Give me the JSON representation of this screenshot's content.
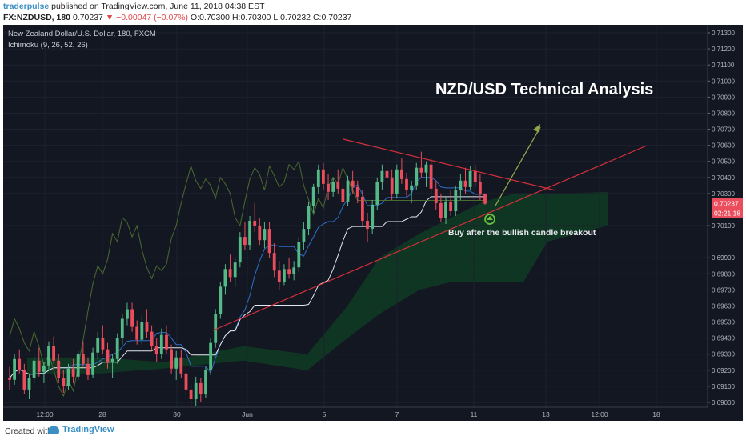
{
  "header": {
    "username": "traderpulse",
    "published_text": " published on TradingView.com, June 11, 2018 04:38 EST",
    "symbol": "FX:NZDUSD, 180",
    "last": "0.70237",
    "change": "−0.00047 (−0.07%)",
    "ohlc": "O:0.70300 H:0.70300 L:0.70232 C:0.70237"
  },
  "chart_info": {
    "instrument": "New Zealand Dollar/U.S. Dollar, 180, FXCM",
    "indicator": "Ichimoku (9, 26, 52, 26)"
  },
  "annotations": {
    "title": "NZD/USD Technical Analysis",
    "note": "Buy after the bullish candle breakout"
  },
  "footer": {
    "created_with": "Created with",
    "brand": "TradingView"
  },
  "colors": {
    "background": "#131722",
    "up": "#53b987",
    "down": "#eb4d5c",
    "price_label": "#eb4d5c",
    "trendline": "#d42f3a",
    "kijun": "#e3e7ee",
    "tenkan": "#2e6fc9",
    "cloud": "#0f3a22"
  },
  "chart_data": {
    "type": "candlestick",
    "y_ticks": [
      "0.71300",
      "0.71200",
      "0.71100",
      "0.71000",
      "0.70900",
      "0.70800",
      "0.70700",
      "0.70600",
      "0.70500",
      "0.70400",
      "0.70300",
      "0.70100",
      "0.69900",
      "0.69800",
      "0.69700",
      "0.69600",
      "0.69500",
      "0.69400",
      "0.69300",
      "0.69200",
      "0.69100",
      "0.69000"
    ],
    "x_ticks": [
      "12:00",
      "28",
      "30",
      "Jun",
      "5",
      "7",
      "11",
      "13",
      "12:00",
      "18"
    ],
    "ylim": [
      0.6897,
      0.7135
    ],
    "last_price": "0.70237",
    "countdown": "02:21:18",
    "ohlc_sample_start": "early 28 May",
    "ohlc_sample_end": "11 Jun",
    "candles": [
      [
        0.6915,
        0.6922,
        0.6908,
        0.6914
      ],
      [
        0.6914,
        0.693,
        0.6911,
        0.6927
      ],
      [
        0.6927,
        0.6933,
        0.6918,
        0.692
      ],
      [
        0.692,
        0.6924,
        0.6905,
        0.6908
      ],
      [
        0.6908,
        0.6918,
        0.6902,
        0.6915
      ],
      [
        0.6915,
        0.6929,
        0.6912,
        0.6926
      ],
      [
        0.6926,
        0.6934,
        0.6916,
        0.6919
      ],
      [
        0.6919,
        0.6925,
        0.6912,
        0.6923
      ],
      [
        0.6923,
        0.6938,
        0.692,
        0.6935
      ],
      [
        0.6935,
        0.6941,
        0.6924,
        0.6926
      ],
      [
        0.6926,
        0.693,
        0.6912,
        0.6915
      ],
      [
        0.6915,
        0.692,
        0.6906,
        0.691
      ],
      [
        0.691,
        0.6924,
        0.6908,
        0.6921
      ],
      [
        0.6921,
        0.6927,
        0.6912,
        0.6916
      ],
      [
        0.6916,
        0.6932,
        0.6914,
        0.693
      ],
      [
        0.693,
        0.6938,
        0.6922,
        0.6924
      ],
      [
        0.6924,
        0.6928,
        0.6914,
        0.6917
      ],
      [
        0.6917,
        0.6934,
        0.6915,
        0.6931
      ],
      [
        0.6931,
        0.6944,
        0.6927,
        0.694
      ],
      [
        0.694,
        0.6948,
        0.693,
        0.6933
      ],
      [
        0.6933,
        0.6937,
        0.6921,
        0.6925
      ],
      [
        0.6925,
        0.693,
        0.6915,
        0.6927
      ],
      [
        0.6927,
        0.6943,
        0.6924,
        0.694
      ],
      [
        0.694,
        0.6955,
        0.6936,
        0.6952
      ],
      [
        0.6952,
        0.6962,
        0.6948,
        0.6958
      ],
      [
        0.6958,
        0.6962,
        0.6944,
        0.6947
      ],
      [
        0.6947,
        0.6951,
        0.6936,
        0.6939
      ],
      [
        0.6939,
        0.6954,
        0.6936,
        0.695
      ],
      [
        0.695,
        0.6958,
        0.694,
        0.6944
      ],
      [
        0.6944,
        0.6948,
        0.6932,
        0.6935
      ],
      [
        0.6935,
        0.694,
        0.6925,
        0.693
      ],
      [
        0.693,
        0.6946,
        0.6927,
        0.6942
      ],
      [
        0.6942,
        0.6948,
        0.693,
        0.6933
      ],
      [
        0.6933,
        0.6936,
        0.6918,
        0.6921
      ],
      [
        0.6921,
        0.6932,
        0.6914,
        0.6928
      ],
      [
        0.6928,
        0.6933,
        0.6915,
        0.6918
      ],
      [
        0.6918,
        0.6923,
        0.6904,
        0.6908
      ],
      [
        0.6908,
        0.6912,
        0.6897,
        0.6902
      ],
      [
        0.6902,
        0.6916,
        0.6898,
        0.6912
      ],
      [
        0.6912,
        0.6915,
        0.69,
        0.6905
      ],
      [
        0.6905,
        0.6922,
        0.6903,
        0.692
      ],
      [
        0.692,
        0.694,
        0.6917,
        0.6937
      ],
      [
        0.6937,
        0.6958,
        0.6934,
        0.6955
      ],
      [
        0.6955,
        0.6975,
        0.6952,
        0.6972
      ],
      [
        0.6972,
        0.6986,
        0.6967,
        0.6983
      ],
      [
        0.6983,
        0.6992,
        0.6975,
        0.6978
      ],
      [
        0.6978,
        0.699,
        0.6972,
        0.6987
      ],
      [
        0.6987,
        0.7006,
        0.6984,
        0.7003
      ],
      [
        0.7003,
        0.7012,
        0.6995,
        0.6998
      ],
      [
        0.6998,
        0.7016,
        0.6995,
        0.7013
      ],
      [
        0.7013,
        0.7024,
        0.7006,
        0.701
      ],
      [
        0.701,
        0.7015,
        0.6998,
        0.7001
      ],
      [
        0.7001,
        0.7012,
        0.6996,
        0.7008
      ],
      [
        0.7008,
        0.7012,
        0.699,
        0.6993
      ],
      [
        0.6993,
        0.6999,
        0.6978,
        0.6982
      ],
      [
        0.6982,
        0.6988,
        0.697,
        0.6975
      ],
      [
        0.6975,
        0.6986,
        0.6973,
        0.6983
      ],
      [
        0.6983,
        0.699,
        0.6977,
        0.698
      ],
      [
        0.698,
        0.6988,
        0.6976,
        0.6984
      ],
      [
        0.6984,
        0.7003,
        0.6981,
        0.7
      ],
      [
        0.7,
        0.7012,
        0.6995,
        0.7008
      ],
      [
        0.7008,
        0.7025,
        0.7004,
        0.7022
      ],
      [
        0.7022,
        0.7036,
        0.7018,
        0.7034
      ],
      [
        0.7034,
        0.7048,
        0.703,
        0.7045
      ],
      [
        0.7045,
        0.7049,
        0.7032,
        0.7036
      ],
      [
        0.7036,
        0.7042,
        0.7026,
        0.7031
      ],
      [
        0.7031,
        0.704,
        0.7028,
        0.7037
      ],
      [
        0.7037,
        0.7045,
        0.703,
        0.7033
      ],
      [
        0.7033,
        0.7038,
        0.7022,
        0.7025
      ],
      [
        0.7025,
        0.7041,
        0.7022,
        0.7038
      ],
      [
        0.7038,
        0.7044,
        0.703,
        0.7034
      ],
      [
        0.7034,
        0.7038,
        0.7024,
        0.7028
      ],
      [
        0.7028,
        0.7032,
        0.701,
        0.7013
      ],
      [
        0.7013,
        0.7018,
        0.7,
        0.7008
      ],
      [
        0.7008,
        0.7026,
        0.7005,
        0.7023
      ],
      [
        0.7023,
        0.704,
        0.702,
        0.7037
      ],
      [
        0.7037,
        0.7048,
        0.7032,
        0.7044
      ],
      [
        0.7044,
        0.7055,
        0.7036,
        0.704
      ],
      [
        0.704,
        0.7045,
        0.7026,
        0.703
      ],
      [
        0.703,
        0.7048,
        0.7027,
        0.7045
      ],
      [
        0.7045,
        0.7052,
        0.7036,
        0.7039
      ],
      [
        0.7039,
        0.7043,
        0.7028,
        0.7032
      ],
      [
        0.7032,
        0.7038,
        0.7024,
        0.7035
      ],
      [
        0.7035,
        0.7049,
        0.7032,
        0.7046
      ],
      [
        0.7046,
        0.7056,
        0.704,
        0.7043
      ],
      [
        0.7043,
        0.705,
        0.7034,
        0.7048
      ],
      [
        0.7048,
        0.7052,
        0.703,
        0.7033
      ],
      [
        0.7033,
        0.7038,
        0.702,
        0.7024
      ],
      [
        0.7024,
        0.703,
        0.7012,
        0.7015
      ],
      [
        0.7015,
        0.7028,
        0.7011,
        0.7025
      ],
      [
        0.7025,
        0.7032,
        0.7016,
        0.7019
      ],
      [
        0.7019,
        0.7035,
        0.7016,
        0.7032
      ],
      [
        0.7032,
        0.7042,
        0.7026,
        0.7038
      ],
      [
        0.7038,
        0.7046,
        0.703,
        0.7034
      ],
      [
        0.7034,
        0.7047,
        0.7032,
        0.7044
      ],
      [
        0.7044,
        0.7048,
        0.7034,
        0.7037
      ],
      [
        0.7037,
        0.7042,
        0.7026,
        0.703
      ],
      [
        0.703,
        0.703,
        0.7023,
        0.70237
      ]
    ]
  }
}
